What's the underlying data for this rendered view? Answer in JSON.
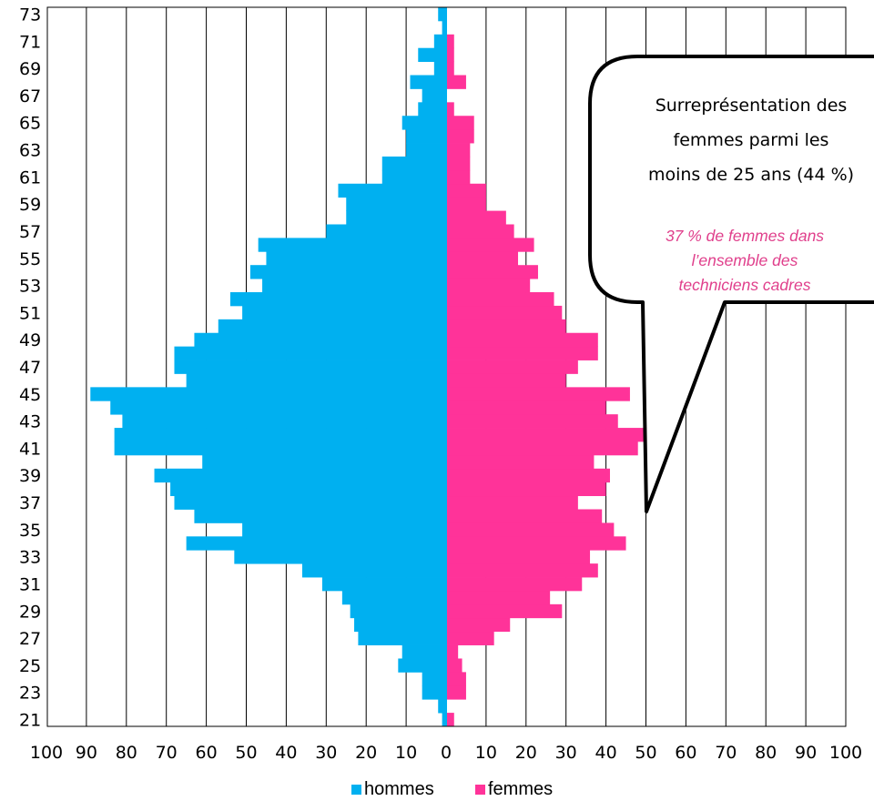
{
  "colors": {
    "hommes": "#00B0F0",
    "femmes": "#FF3399",
    "callout_sub": "#E0408C"
  },
  "chart_data": {
    "type": "bar",
    "orientation": "horizontal",
    "variant": "population-pyramid",
    "ages": [
      21,
      22,
      23,
      24,
      25,
      26,
      27,
      28,
      29,
      30,
      31,
      32,
      33,
      34,
      35,
      36,
      37,
      38,
      39,
      40,
      41,
      42,
      43,
      44,
      45,
      46,
      47,
      48,
      49,
      50,
      51,
      52,
      53,
      54,
      55,
      56,
      57,
      58,
      59,
      60,
      61,
      62,
      63,
      64,
      65,
      66,
      67,
      68,
      69,
      70,
      71,
      72,
      73
    ],
    "y_tick_labels": [
      "73",
      "71",
      "69",
      "67",
      "65",
      "63",
      "61",
      "59",
      "57",
      "55",
      "53",
      "51",
      "49",
      "47",
      "45",
      "43",
      "41",
      "39",
      "37",
      "35",
      "33",
      "31",
      "29",
      "27",
      "25",
      "23",
      "21"
    ],
    "x_tick_labels": [
      "100",
      "90",
      "80",
      "70",
      "60",
      "50",
      "40",
      "30",
      "20",
      "10",
      "0",
      "10",
      "20",
      "30",
      "40",
      "50",
      "60",
      "70",
      "80",
      "90",
      "100"
    ],
    "xlim": [
      -100,
      100
    ],
    "series": [
      {
        "name": "hommes",
        "side": "left",
        "values": [
          1,
          2,
          6,
          6,
          12,
          11,
          22,
          23,
          24,
          26,
          31,
          36,
          53,
          65,
          51,
          63,
          68,
          69,
          73,
          61,
          83,
          83,
          81,
          84,
          89,
          65,
          68,
          68,
          63,
          57,
          51,
          54,
          46,
          49,
          45,
          47,
          30,
          25,
          25,
          27,
          16,
          16,
          10,
          10,
          11,
          7,
          6,
          9,
          3,
          7,
          3,
          1,
          2
        ]
      },
      {
        "name": "femmes",
        "side": "right",
        "values": [
          2,
          0,
          5,
          5,
          4,
          3,
          12,
          16,
          29,
          26,
          34,
          38,
          36,
          45,
          42,
          39,
          33,
          40,
          41,
          37,
          48,
          50,
          43,
          40,
          46,
          30,
          33,
          38,
          38,
          30,
          29,
          27,
          21,
          23,
          18,
          22,
          17,
          15,
          10,
          10,
          6,
          6,
          6,
          7,
          7,
          2,
          0,
          5,
          2,
          2,
          2,
          0,
          0
        ]
      }
    ],
    "legend": {
      "position": "bottom"
    },
    "annotation": {
      "lines": [
        "Surreprésentation des",
        "femmes parmi les",
        "moins de 25 ans (44 %)"
      ],
      "sub_lines": [
        "37 % de femmes dans",
        "l’ensemble des",
        "techniciens cadres"
      ]
    }
  }
}
